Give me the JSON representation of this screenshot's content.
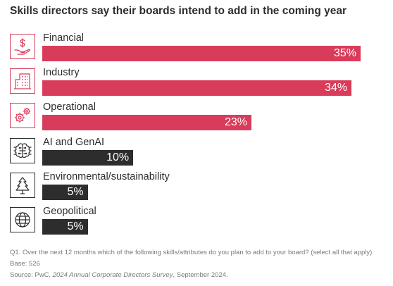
{
  "title": "Skills directors say their boards intend to add in the coming year",
  "chart_data": {
    "type": "bar",
    "orientation": "horizontal",
    "title": "Skills directors say their boards intend to add in the coming year",
    "categories": [
      "Financial",
      "Industry",
      "Operational",
      "AI and GenAI",
      "Environmental/sustainability",
      "Geopolitical"
    ],
    "values": [
      35,
      34,
      23,
      10,
      5,
      5
    ],
    "value_labels": [
      "35%",
      "34%",
      "23%",
      "10%",
      "5%",
      "5%"
    ],
    "unit": "%",
    "xlim": [
      0,
      35
    ],
    "grid": false,
    "legend": "none",
    "bar_colors": [
      "#d93c5a",
      "#d93c5a",
      "#d93c5a",
      "#2d2d2d",
      "#2d2d2d",
      "#2d2d2d"
    ],
    "icons": [
      "dollar-hand-icon",
      "building-icon",
      "gears-icon",
      "brain-chip-icon",
      "tree-icon",
      "globe-icon"
    ]
  },
  "footnotes": {
    "question": "Q1. Over the next 12 months which of the following skills/attributes do you plan to add to your board? (select all that apply)",
    "base": "Base: 526",
    "source_prefix": "Source: PwC, ",
    "source_title": "2024 Annual Corporate Directors Survey",
    "source_suffix": ", September 2024."
  },
  "colors": {
    "accent": "#d93c5a",
    "dark": "#2d2d2d",
    "note": "#7a7a7a"
  }
}
